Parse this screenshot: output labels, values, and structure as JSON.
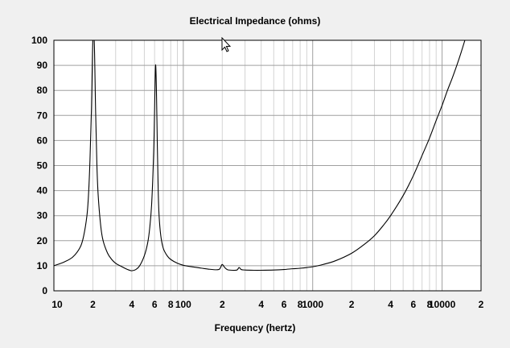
{
  "window": {
    "background": "#f0f0f0",
    "plot_background": "#ffffff"
  },
  "chart_data": {
    "type": "line",
    "title": "Electrical Impedance (ohms)",
    "xlabel": "Frequency (hertz)",
    "ylabel": "",
    "x_scale": "log",
    "xlim": [
      10,
      20000
    ],
    "ylim": [
      0,
      100
    ],
    "grid": true,
    "legend": "none",
    "line_color": "#000000",
    "grid_major_color": "#a0a0a0",
    "grid_minor_color": "#d4d4d4",
    "x_tick_labels": [
      {
        "value": 10,
        "label": "10"
      },
      {
        "value": 20,
        "label": "2"
      },
      {
        "value": 40,
        "label": "4"
      },
      {
        "value": 60,
        "label": "6"
      },
      {
        "value": 80,
        "label": "8"
      },
      {
        "value": 100,
        "label": "100"
      },
      {
        "value": 200,
        "label": "2"
      },
      {
        "value": 400,
        "label": "4"
      },
      {
        "value": 600,
        "label": "6"
      },
      {
        "value": 800,
        "label": "8"
      },
      {
        "value": 1000,
        "label": "1000"
      },
      {
        "value": 2000,
        "label": "2"
      },
      {
        "value": 4000,
        "label": "4"
      },
      {
        "value": 6000,
        "label": "6"
      },
      {
        "value": 8000,
        "label": "8"
      },
      {
        "value": 10000,
        "label": "10000"
      },
      {
        "value": 20000,
        "label": "2"
      }
    ],
    "y_tick_labels": [
      "0",
      "10",
      "20",
      "30",
      "40",
      "50",
      "60",
      "70",
      "80",
      "90",
      "100"
    ],
    "series": [
      {
        "x": [
          10,
          12,
          14,
          16,
          17,
          18,
          18.5,
          19,
          19.5,
          20,
          20.5,
          21,
          21.5,
          22,
          23,
          24,
          26,
          28,
          30,
          33,
          36,
          38,
          40,
          43,
          46,
          50,
          53,
          55,
          57,
          59,
          60,
          61,
          62,
          63,
          64,
          65,
          67,
          70,
          75,
          80,
          90,
          100,
          120,
          140,
          160,
          180,
          190,
          195,
          200,
          210,
          220,
          240,
          260,
          270,
          280,
          300,
          350,
          400,
          500,
          600,
          700,
          800,
          1000,
          1200,
          1500,
          2000,
          2500,
          3000,
          3500,
          4000,
          5000,
          6000,
          7000,
          8000,
          9000,
          10000,
          11000,
          12000,
          13000,
          14000,
          15000
        ],
        "y": [
          10,
          11.5,
          13.5,
          17.5,
          22,
          30,
          38,
          52,
          72,
          100,
          100,
          72,
          50,
          38,
          26,
          20,
          15,
          12.5,
          11,
          9.8,
          8.8,
          8.3,
          8,
          8.5,
          10,
          14,
          19,
          25,
          35,
          55,
          72,
          90,
          80,
          58,
          40,
          30,
          22,
          17,
          14,
          12.5,
          11,
          10.2,
          9.5,
          9,
          8.6,
          8.4,
          8.6,
          9.5,
          10.5,
          9.2,
          8.4,
          8.2,
          8.3,
          9.3,
          8.5,
          8.3,
          8.2,
          8.2,
          8.3,
          8.5,
          8.8,
          9,
          9.6,
          10.5,
          12,
          15,
          18.5,
          22,
          26,
          30,
          38,
          46,
          54,
          61,
          68,
          74,
          80,
          85,
          90,
          95,
          100
        ]
      }
    ]
  }
}
